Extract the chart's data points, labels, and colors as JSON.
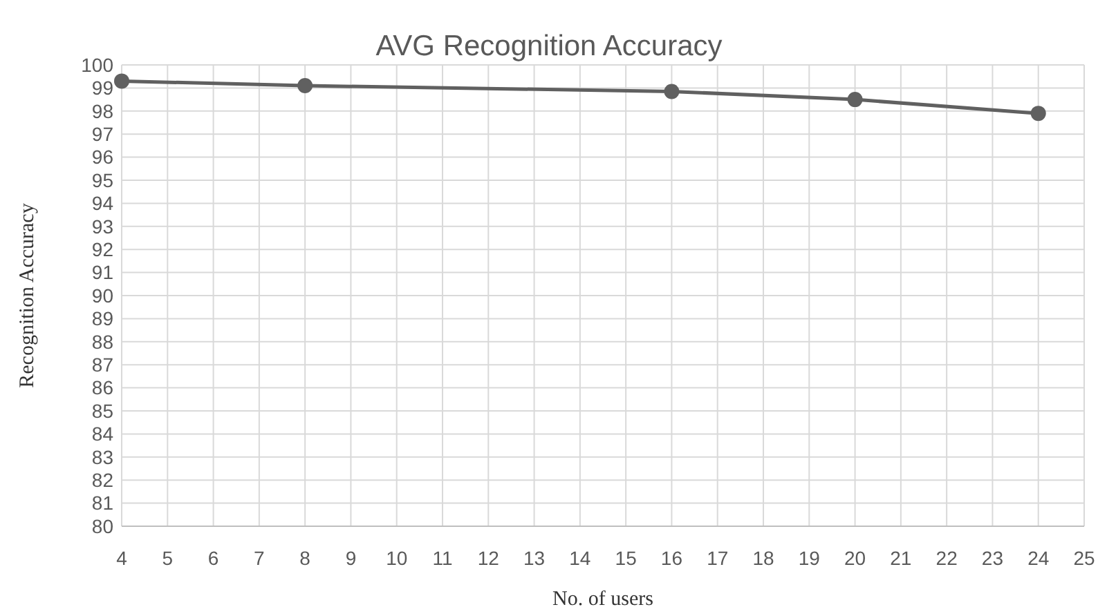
{
  "chart_data": {
    "type": "line",
    "title": "AVG Recognition Accuracy",
    "xlabel": "No. of users",
    "ylabel": "Recognition Accuracy",
    "x": [
      4,
      8,
      16,
      20,
      24
    ],
    "series": [
      {
        "color": "#606060",
        "values": [
          99.3,
          99.1,
          98.85,
          98.5,
          97.9
        ]
      }
    ],
    "xlim": [
      4,
      25
    ],
    "xticks": [
      4,
      5,
      6,
      7,
      8,
      9,
      10,
      11,
      12,
      13,
      14,
      15,
      16,
      17,
      18,
      19,
      20,
      21,
      22,
      23,
      24,
      25
    ],
    "ylim": [
      80,
      100
    ],
    "yticks": [
      80,
      81,
      82,
      83,
      84,
      85,
      86,
      87,
      88,
      89,
      90,
      91,
      92,
      93,
      94,
      95,
      96,
      97,
      98,
      99,
      100
    ],
    "grid": true,
    "marker": "circle",
    "line_style": "solid"
  }
}
